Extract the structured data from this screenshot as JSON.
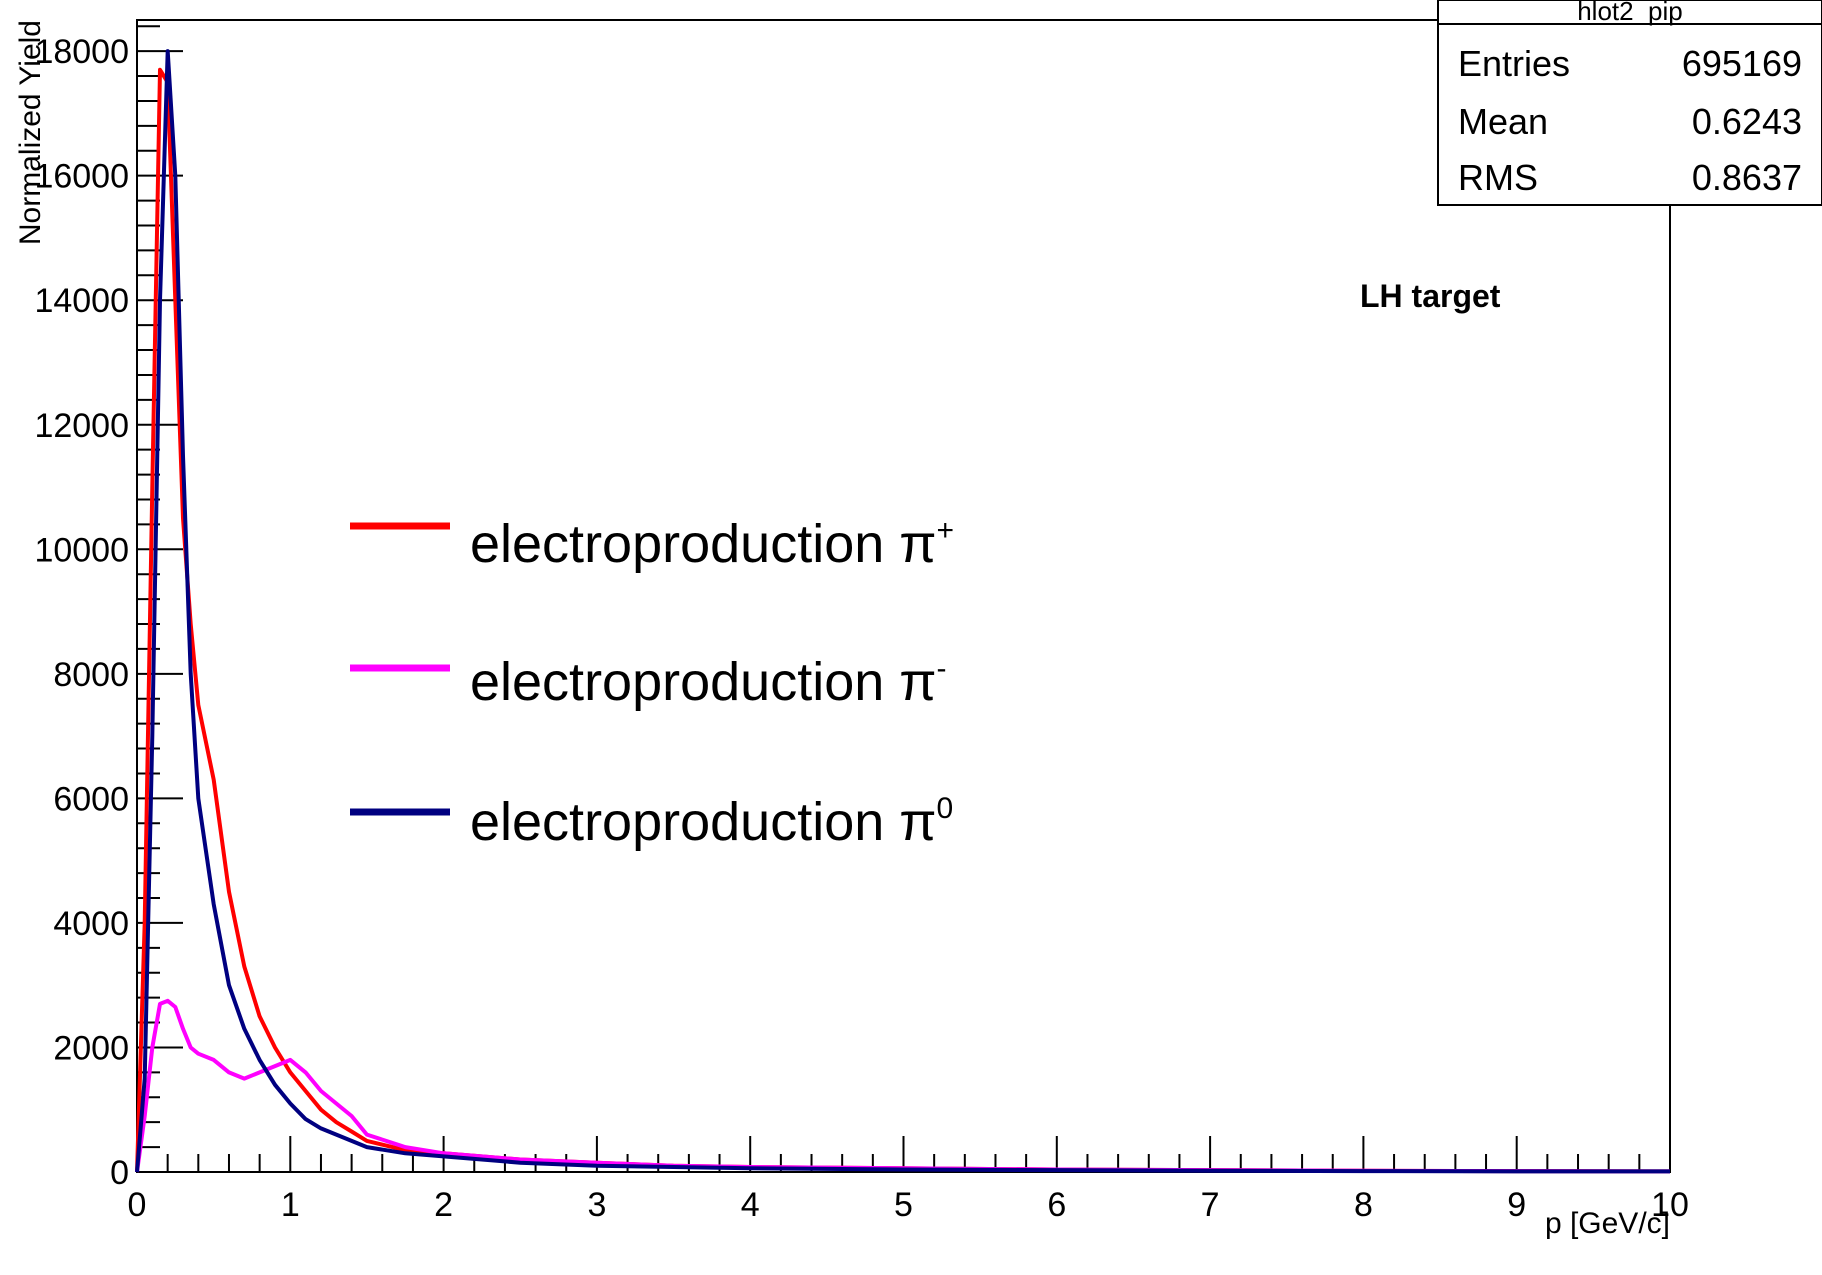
{
  "chart_data": {
    "type": "line",
    "title": "",
    "xlabel": "p [GeV/c]",
    "ylabel": "Normalized Yield",
    "xlim": [
      0,
      10
    ],
    "ylim": [
      0,
      18500
    ],
    "x_ticks": [
      "0",
      "1",
      "2",
      "3",
      "4",
      "5",
      "6",
      "7",
      "8",
      "9",
      "10"
    ],
    "y_ticks": [
      "0",
      "2000",
      "4000",
      "6000",
      "8000",
      "10000",
      "12000",
      "14000",
      "16000",
      "18000"
    ],
    "grid": false,
    "legend_position": "center-left",
    "annotation": "LH target",
    "stats_box": {
      "title": "hlot2_pip",
      "rows": [
        {
          "label": "Entries",
          "value": "695169"
        },
        {
          "label": "Mean",
          "value": "0.6243"
        },
        {
          "label": "RMS",
          "value": "0.8637"
        }
      ]
    },
    "series": [
      {
        "name": "electroproduction π+",
        "label_text": "electroproduction π",
        "label_sup": "+",
        "color": "#ff0000",
        "x": [
          0,
          0.05,
          0.1,
          0.15,
          0.2,
          0.25,
          0.3,
          0.35,
          0.4,
          0.5,
          0.6,
          0.7,
          0.8,
          0.9,
          1.0,
          1.1,
          1.2,
          1.3,
          1.4,
          1.5,
          1.75,
          2.0,
          2.5,
          3.0,
          3.5,
          4.0,
          5.0,
          6.0,
          7.0,
          8.0,
          9.0,
          10.0
        ],
        "y": [
          0,
          4000,
          11000,
          17700,
          17500,
          14000,
          10500,
          8800,
          7500,
          6300,
          4500,
          3300,
          2500,
          2000,
          1600,
          1300,
          1000,
          800,
          650,
          500,
          350,
          300,
          200,
          150,
          100,
          80,
          60,
          40,
          30,
          20,
          15,
          10
        ]
      },
      {
        "name": "electroproduction π-",
        "label_text": "electroproduction π",
        "label_sup": "-",
        "color": "#ff00ff",
        "x": [
          0,
          0.05,
          0.1,
          0.15,
          0.2,
          0.25,
          0.3,
          0.35,
          0.4,
          0.5,
          0.6,
          0.7,
          0.8,
          0.9,
          1.0,
          1.1,
          1.2,
          1.3,
          1.4,
          1.5,
          1.75,
          2.0,
          2.5,
          3.0,
          3.5,
          4.0,
          5.0,
          6.0,
          7.0,
          8.0,
          9.0,
          10.0
        ],
        "y": [
          0,
          900,
          2000,
          2700,
          2750,
          2650,
          2300,
          2000,
          1900,
          1800,
          1600,
          1500,
          1600,
          1700,
          1800,
          1600,
          1300,
          1100,
          900,
          600,
          400,
          300,
          200,
          150,
          100,
          80,
          60,
          40,
          30,
          20,
          15,
          10
        ]
      },
      {
        "name": "electroproduction π0",
        "label_text": "electroproduction π",
        "label_sup": "0",
        "color": "#000080",
        "x": [
          0,
          0.05,
          0.1,
          0.15,
          0.2,
          0.25,
          0.3,
          0.35,
          0.4,
          0.5,
          0.6,
          0.7,
          0.8,
          0.9,
          1.0,
          1.1,
          1.2,
          1.3,
          1.4,
          1.5,
          1.75,
          2.0,
          2.5,
          3.0,
          3.5,
          4.0,
          5.0,
          6.0,
          7.0,
          8.0,
          9.0,
          10.0
        ],
        "y": [
          0,
          1500,
          7000,
          14000,
          18000,
          16000,
          11500,
          8000,
          6000,
          4300,
          3000,
          2300,
          1800,
          1400,
          1100,
          850,
          700,
          600,
          500,
          400,
          300,
          250,
          150,
          100,
          80,
          60,
          40,
          30,
          20,
          15,
          10,
          10
        ]
      }
    ]
  }
}
